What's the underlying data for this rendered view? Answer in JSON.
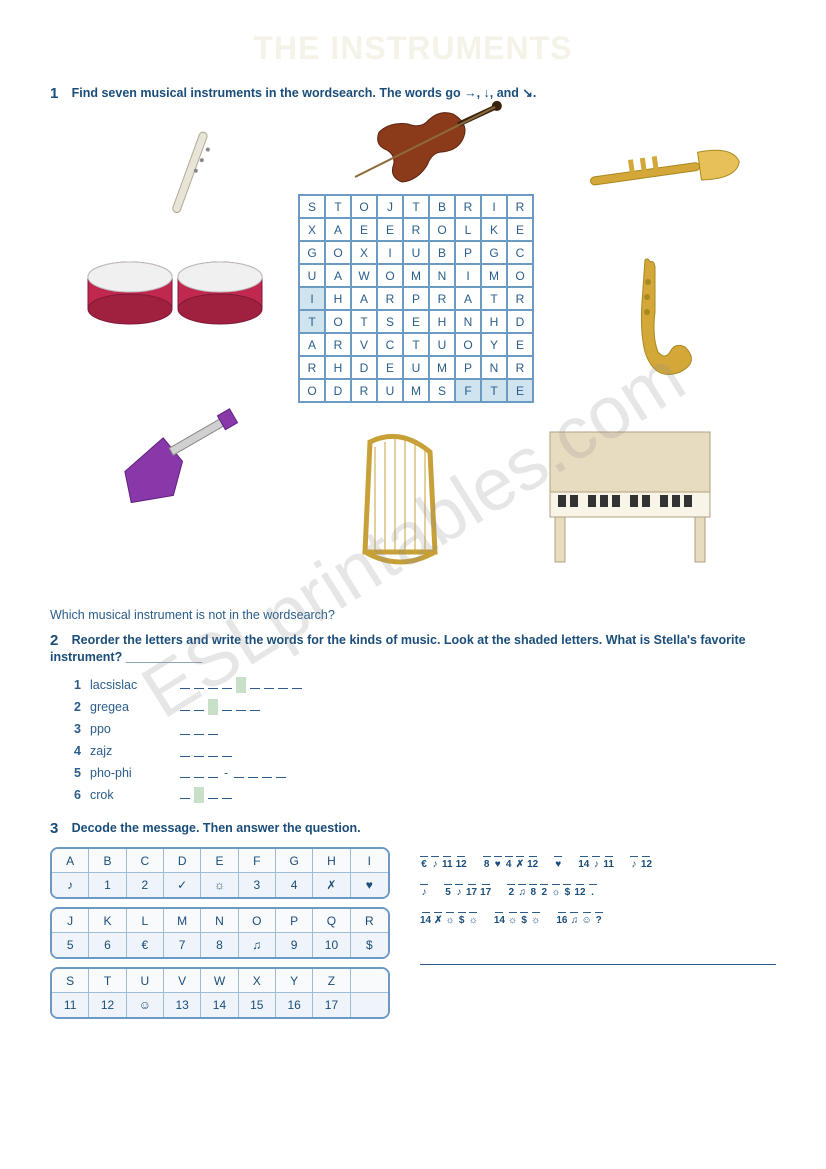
{
  "title": "THE INSTRUMENTS",
  "watermark": "ESLprintables.com",
  "ex1": {
    "num": "1",
    "instruction": "Find seven musical instruments in the wordsearch. The words go →, ↓, and ↘.",
    "grid": [
      [
        "S",
        "T",
        "O",
        "J",
        "T",
        "B",
        "R",
        "I",
        "R"
      ],
      [
        "X",
        "A",
        "E",
        "E",
        "R",
        "O",
        "L",
        "K",
        "E"
      ],
      [
        "G",
        "O",
        "X",
        "I",
        "U",
        "B",
        "P",
        "G",
        "C"
      ],
      [
        "U",
        "A",
        "W",
        "O",
        "M",
        "N",
        "I",
        "M",
        "O"
      ],
      [
        "I",
        "H",
        "A",
        "R",
        "P",
        "R",
        "A",
        "T",
        "R"
      ],
      [
        "T",
        "O",
        "T",
        "S",
        "E",
        "H",
        "N",
        "H",
        "D"
      ],
      [
        "A",
        "R",
        "V",
        "C",
        "T",
        "U",
        "O",
        "Y",
        "E"
      ],
      [
        "R",
        "H",
        "D",
        "E",
        "U",
        "M",
        "P",
        "N",
        "R"
      ],
      [
        "O",
        "D",
        "R",
        "U",
        "M",
        "S",
        "F",
        "T",
        "E"
      ]
    ],
    "shaded_cells": [
      [
        4,
        0
      ],
      [
        5,
        0
      ],
      [
        8,
        6
      ],
      [
        8,
        7
      ],
      [
        8,
        8
      ]
    ],
    "sub_question": "Which musical instrument is not in the wordsearch?"
  },
  "ex2": {
    "num": "2",
    "instruction": "Reorder the letters and write the words for the kinds of music. Look at the shaded letters. What is Stella's favorite instrument? ___________",
    "items": [
      {
        "n": "1",
        "scramble": "lacsislac",
        "len": 9,
        "shaded": 4
      },
      {
        "n": "2",
        "scramble": "gregea",
        "len": 6,
        "shaded": 2
      },
      {
        "n": "3",
        "scramble": "ppo",
        "len": 3,
        "shaded": null
      },
      {
        "n": "4",
        "scramble": "zajz",
        "len": 4,
        "shaded": null
      },
      {
        "n": "5",
        "scramble": "pho-phi",
        "len": 7,
        "shaded": null,
        "dash_at": 3
      },
      {
        "n": "6",
        "scramble": "crok",
        "len": 4,
        "shaded": 1
      }
    ]
  },
  "ex3": {
    "num": "3",
    "instruction": "Decode the message. Then answer the question.",
    "tables": [
      {
        "letters": [
          "A",
          "B",
          "C",
          "D",
          "E",
          "F",
          "G",
          "H",
          "I"
        ],
        "symbols": [
          "♪",
          "1",
          "2",
          "✓",
          "☼",
          "3",
          "4",
          "✗",
          "♥"
        ]
      },
      {
        "letters": [
          "J",
          "K",
          "L",
          "M",
          "N",
          "O",
          "P",
          "Q",
          "R"
        ],
        "symbols": [
          "5",
          "6",
          "€",
          "7",
          "8",
          "♫",
          "9",
          "10",
          "$"
        ]
      },
      {
        "letters": [
          "S",
          "T",
          "U",
          "V",
          "W",
          "X",
          "Y",
          "Z",
          ""
        ],
        "symbols": [
          "11",
          "12",
          "☺",
          "13",
          "14",
          "15",
          "16",
          "17",
          ""
        ]
      }
    ],
    "lines": [
      [
        "€",
        "♪",
        "11",
        "12",
        "",
        "8",
        "♥",
        "4",
        "✗",
        "12",
        "",
        "♥",
        "",
        "14",
        "♪",
        "11",
        "",
        "♪",
        "12"
      ],
      [
        "♪",
        "",
        "5",
        "♪",
        "17",
        "17",
        "",
        "2",
        "♫",
        "8",
        "2",
        "☼",
        "$",
        "12",
        "."
      ],
      [
        "14",
        "✗",
        "☼",
        "$",
        "☼",
        "",
        "14",
        "☼",
        "$",
        "☼",
        "",
        "16",
        "♫",
        "☺",
        "?"
      ]
    ]
  }
}
